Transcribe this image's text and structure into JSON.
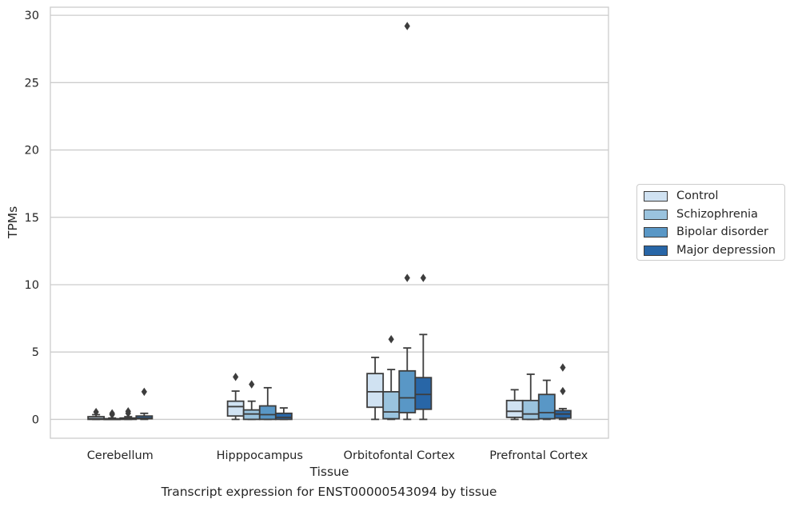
{
  "caption": "Transcript expression for ENST00000543094 by tissue",
  "chart_data": {
    "type": "box",
    "xlabel": "Tissue",
    "ylabel": "TPMs",
    "ylim": [
      -1.4,
      30.6
    ],
    "yticks": [
      0,
      5,
      10,
      15,
      20,
      25,
      30
    ],
    "grid": true,
    "legend_position": "right",
    "categories": [
      "Cerebellum",
      "Hipppocampus",
      "Orbitofontal Cortex",
      "Prefrontal Cortex"
    ],
    "series": [
      {
        "name": "Control",
        "color": "#d0e2f2",
        "boxes": [
          {
            "min": 0.0,
            "q1": 0.0,
            "median": 0.05,
            "q3": 0.2,
            "max": 0.35,
            "outliers": [
              0.55
            ]
          },
          {
            "min": 0.0,
            "q1": 0.25,
            "median": 0.95,
            "q3": 1.35,
            "max": 2.1,
            "outliers": [
              3.15
            ]
          },
          {
            "min": 0.0,
            "q1": 0.9,
            "median": 2.05,
            "q3": 3.4,
            "max": 4.6,
            "outliers": []
          },
          {
            "min": 0.0,
            "q1": 0.15,
            "median": 0.6,
            "q3": 1.4,
            "max": 2.2,
            "outliers": []
          }
        ]
      },
      {
        "name": "Schizophrenia",
        "color": "#9ac3de",
        "boxes": [
          {
            "min": 0.0,
            "q1": 0.0,
            "median": 0.0,
            "q3": 0.05,
            "max": 0.1,
            "outliers": [
              0.35,
              0.45
            ]
          },
          {
            "min": 0.0,
            "q1": 0.0,
            "median": 0.4,
            "q3": 0.7,
            "max": 1.35,
            "outliers": [
              2.6
            ]
          },
          {
            "min": 0.0,
            "q1": 0.05,
            "median": 0.55,
            "q3": 2.05,
            "max": 3.7,
            "outliers": [
              5.95
            ]
          },
          {
            "min": 0.0,
            "q1": 0.0,
            "median": 0.4,
            "q3": 1.4,
            "max": 3.35,
            "outliers": []
          }
        ]
      },
      {
        "name": "Bipolar disorder",
        "color": "#5997c6",
        "boxes": [
          {
            "min": 0.0,
            "q1": 0.0,
            "median": 0.05,
            "q3": 0.1,
            "max": 0.2,
            "outliers": [
              0.45,
              0.6
            ]
          },
          {
            "min": 0.0,
            "q1": 0.0,
            "median": 0.35,
            "q3": 1.0,
            "max": 2.35,
            "outliers": []
          },
          {
            "min": 0.0,
            "q1": 0.5,
            "median": 1.6,
            "q3": 3.6,
            "max": 5.3,
            "outliers": [
              10.5,
              29.2
            ]
          },
          {
            "min": 0.0,
            "q1": 0.05,
            "median": 0.5,
            "q3": 1.85,
            "max": 2.9,
            "outliers": []
          }
        ]
      },
      {
        "name": "Major depression",
        "color": "#2866a7",
        "boxes": [
          {
            "min": 0.0,
            "q1": 0.05,
            "median": 0.1,
            "q3": 0.25,
            "max": 0.45,
            "outliers": [
              2.05
            ]
          },
          {
            "min": 0.0,
            "q1": 0.0,
            "median": 0.15,
            "q3": 0.45,
            "max": 0.85,
            "outliers": []
          },
          {
            "min": 0.0,
            "q1": 0.75,
            "median": 1.85,
            "q3": 3.1,
            "max": 6.3,
            "outliers": [
              10.5
            ]
          },
          {
            "min": 0.0,
            "q1": 0.1,
            "median": 0.4,
            "q3": 0.65,
            "max": 0.8,
            "outliers": [
              2.1,
              3.85
            ]
          }
        ]
      }
    ]
  }
}
